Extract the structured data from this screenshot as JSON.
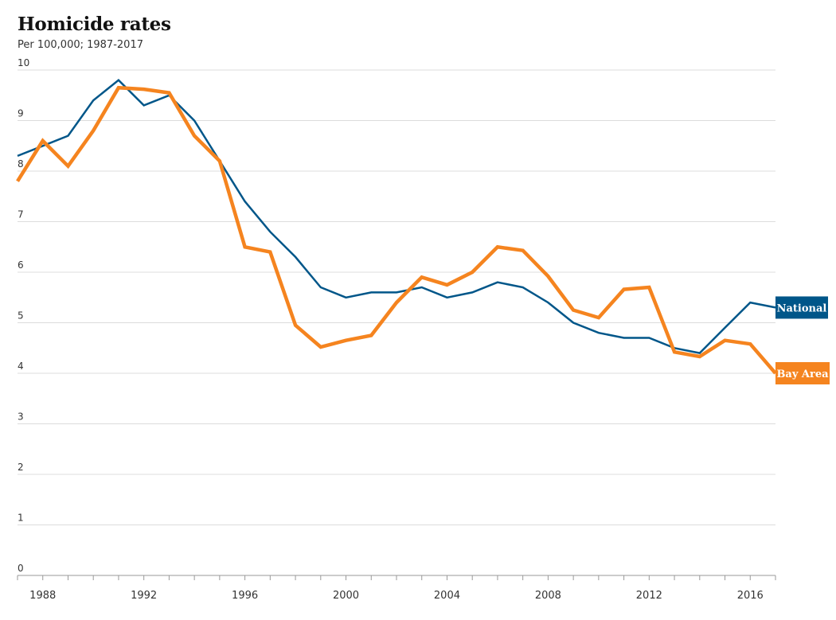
{
  "chart_data": {
    "type": "line",
    "title": "Homicide rates",
    "subtitle": "Per 100,000; 1987-2017",
    "xlabel": "",
    "ylabel": "",
    "xlim": [
      1987,
      2017
    ],
    "ylim": [
      0,
      10
    ],
    "y_ticks": [
      0,
      1,
      2,
      3,
      4,
      5,
      6,
      7,
      8,
      9,
      10
    ],
    "x_ticks": [
      1988,
      1992,
      1996,
      2000,
      2004,
      2008,
      2012,
      2016
    ],
    "grid": "horizontal",
    "legend": "direct-labels-right",
    "x": [
      1987,
      1988,
      1989,
      1990,
      1991,
      1992,
      1993,
      1994,
      1995,
      1996,
      1997,
      1998,
      1999,
      2000,
      2001,
      2002,
      2003,
      2004,
      2005,
      2006,
      2007,
      2008,
      2009,
      2010,
      2011,
      2012,
      2013,
      2014,
      2015,
      2016,
      2017
    ],
    "series": [
      {
        "name": "National",
        "color": "#005689",
        "values": [
          8.3,
          8.5,
          8.7,
          9.4,
          9.8,
          9.3,
          9.5,
          9.0,
          8.2,
          7.4,
          6.8,
          6.3,
          5.7,
          5.5,
          5.6,
          5.6,
          5.7,
          5.5,
          5.6,
          5.8,
          5.7,
          5.4,
          5.0,
          4.8,
          4.7,
          4.7,
          4.5,
          4.4,
          4.9,
          5.4,
          5.3
        ]
      },
      {
        "name": "Bay Area",
        "color": "#f5841f",
        "values": [
          7.8,
          8.6,
          8.1,
          8.8,
          9.65,
          9.62,
          9.55,
          8.7,
          8.2,
          6.5,
          6.4,
          4.95,
          4.52,
          4.65,
          4.75,
          5.4,
          5.9,
          5.75,
          6.0,
          6.5,
          6.43,
          5.92,
          5.25,
          5.1,
          5.66,
          5.7,
          4.42,
          4.33,
          4.65,
          4.58,
          4.0
        ]
      }
    ]
  }
}
